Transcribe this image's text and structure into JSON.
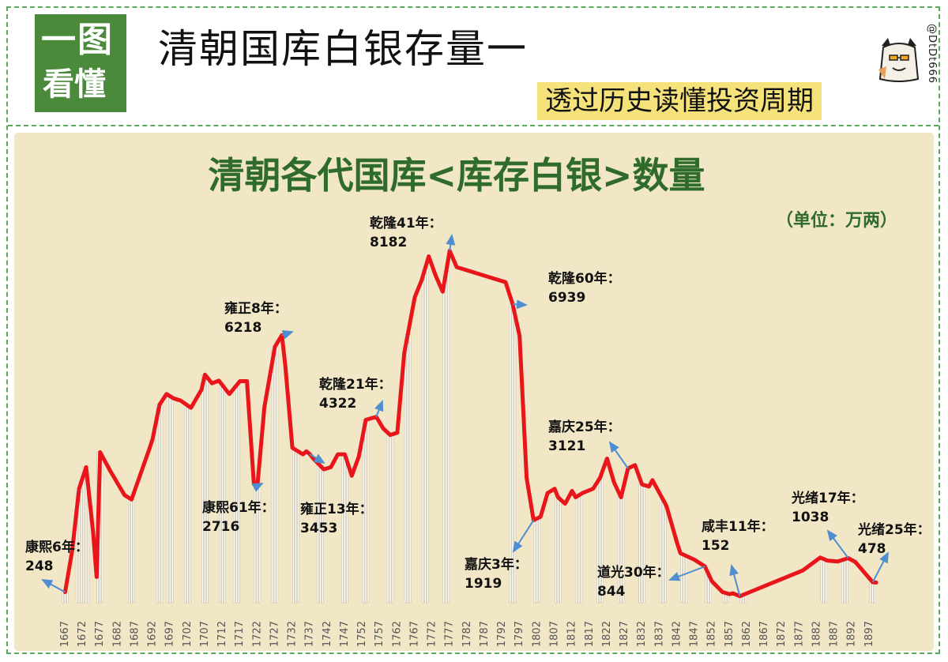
{
  "header": {
    "logo_line1": "一图",
    "logo_line2": "看懂",
    "title": "清朝国库白银存量一",
    "subtitle": "透过历史读懂投资周期",
    "handle": "@DtDt666"
  },
  "colors": {
    "accent_green": "#4a8a3a",
    "dashed_border": "#5aa85a",
    "line": "#e8161b",
    "arrow": "#4f8ed0",
    "panel_bg": "#f1e6c6",
    "subtitle_bg": "#f6e27a"
  },
  "chart_data": {
    "type": "line",
    "title": "清朝各代国库<库存白银>数量",
    "unit": "（单位：万两）",
    "xlabel": "",
    "ylabel": "",
    "xlim": [
      1666,
      1901
    ],
    "ylim": [
      0,
      9000
    ],
    "x_ticks": [
      1667,
      1672,
      1677,
      1682,
      1687,
      1692,
      1697,
      1702,
      1707,
      1712,
      1717,
      1722,
      1727,
      1732,
      1737,
      1742,
      1747,
      1752,
      1757,
      1762,
      1767,
      1772,
      1777,
      1782,
      1787,
      1792,
      1797,
      1802,
      1807,
      1812,
      1817,
      1822,
      1827,
      1832,
      1837,
      1842,
      1847,
      1852,
      1857,
      1862,
      1867,
      1872,
      1877,
      1882,
      1887,
      1892,
      1897
    ],
    "points": [
      [
        1667,
        248
      ],
      [
        1669,
        1200
      ],
      [
        1671,
        2650
      ],
      [
        1673,
        3150
      ],
      [
        1675,
        1650
      ],
      [
        1676,
        600
      ],
      [
        1677,
        3500
      ],
      [
        1680,
        3050
      ],
      [
        1684,
        2500
      ],
      [
        1686,
        2400
      ],
      [
        1691,
        3550
      ],
      [
        1692,
        3800
      ],
      [
        1694,
        4600
      ],
      [
        1696,
        4850
      ],
      [
        1698,
        4750
      ],
      [
        1700,
        4700
      ],
      [
        1703,
        4530
      ],
      [
        1706,
        4950
      ],
      [
        1707,
        5300
      ],
      [
        1709,
        5100
      ],
      [
        1711,
        5160
      ],
      [
        1713,
        4950
      ],
      [
        1714,
        4850
      ],
      [
        1717,
        5150
      ],
      [
        1719,
        5150
      ],
      [
        1721,
        2750
      ],
      [
        1722,
        2716
      ],
      [
        1724,
        4550
      ],
      [
        1727,
        5950
      ],
      [
        1729,
        6218
      ],
      [
        1730,
        5500
      ],
      [
        1732,
        3600
      ],
      [
        1735,
        3450
      ],
      [
        1736,
        3520
      ],
      [
        1737,
        3453
      ],
      [
        1738,
        3350
      ],
      [
        1741,
        3100
      ],
      [
        1743,
        3150
      ],
      [
        1745,
        3450
      ],
      [
        1747,
        3450
      ],
      [
        1749,
        2950
      ],
      [
        1751,
        3400
      ],
      [
        1753,
        4250
      ],
      [
        1756,
        4322
      ],
      [
        1758,
        4050
      ],
      [
        1760,
        3900
      ],
      [
        1762,
        3950
      ],
      [
        1764,
        5800
      ],
      [
        1767,
        7100
      ],
      [
        1769,
        7500
      ],
      [
        1771,
        8050
      ],
      [
        1773,
        7600
      ],
      [
        1775,
        7230
      ],
      [
        1776,
        7700
      ],
      [
        1777,
        8182
      ],
      [
        1779,
        7800
      ],
      [
        1793,
        7450
      ],
      [
        1795,
        6939
      ],
      [
        1797,
        6200
      ],
      [
        1799,
        2900
      ],
      [
        1801,
        1919
      ],
      [
        1803,
        2000
      ],
      [
        1805,
        2550
      ],
      [
        1807,
        2650
      ],
      [
        1808,
        2450
      ],
      [
        1810,
        2300
      ],
      [
        1812,
        2600
      ],
      [
        1813,
        2450
      ],
      [
        1815,
        2550
      ],
      [
        1818,
        2650
      ],
      [
        1820,
        2900
      ],
      [
        1822,
        3350
      ],
      [
        1824,
        2800
      ],
      [
        1826,
        2450
      ],
      [
        1828,
        3121
      ],
      [
        1830,
        3200
      ],
      [
        1832,
        2750
      ],
      [
        1834,
        2700
      ],
      [
        1835,
        2850
      ],
      [
        1839,
        2250
      ],
      [
        1842,
        1400
      ],
      [
        1843,
        1150
      ],
      [
        1847,
        1000
      ],
      [
        1850,
        844
      ],
      [
        1852,
        500
      ],
      [
        1855,
        250
      ],
      [
        1857,
        200
      ],
      [
        1858,
        220
      ],
      [
        1860,
        152
      ],
      [
        1862,
        220
      ],
      [
        1878,
        750
      ],
      [
        1883,
        1050
      ],
      [
        1885,
        980
      ],
      [
        1888,
        960
      ],
      [
        1891,
        1038
      ],
      [
        1893,
        950
      ],
      [
        1898,
        478
      ],
      [
        1899,
        470
      ]
    ],
    "bar_years": [
      1667,
      1671,
      1673,
      1677,
      1686,
      1694,
      1697,
      1702,
      1707,
      1712,
      1716,
      1722,
      1727,
      1733,
      1740,
      1747,
      1753,
      1760,
      1765,
      1770,
      1776,
      1795,
      1802,
      1808,
      1814,
      1820,
      1826,
      1832,
      1838,
      1844,
      1851,
      1856,
      1861,
      1884,
      1890,
      1898
    ],
    "annotations": [
      {
        "label": "康熙6年：",
        "value": "248",
        "year": 1667,
        "amount": 248
      },
      {
        "label": "康熙61年：",
        "value": "2716",
        "year": 1722,
        "amount": 2716
      },
      {
        "label": "雍正8年：",
        "value": "6218",
        "year": 1729,
        "amount": 6218
      },
      {
        "label": "雍正13年：",
        "value": "3453",
        "year": 1737,
        "amount": 3453
      },
      {
        "label": "乾隆21年：",
        "value": "4322",
        "year": 1756,
        "amount": 4322
      },
      {
        "label": "乾隆41年：",
        "value": "8182",
        "year": 1777,
        "amount": 8182
      },
      {
        "label": "乾隆60年：",
        "value": "6939",
        "year": 1795,
        "amount": 6939
      },
      {
        "label": "嘉庆3年：",
        "value": "1919",
        "year": 1801,
        "amount": 1919
      },
      {
        "label": "嘉庆25年：",
        "value": "3121",
        "year": 1828,
        "amount": 3121
      },
      {
        "label": "道光30年：",
        "value": "844",
        "year": 1850,
        "amount": 844
      },
      {
        "label": "咸丰11年：",
        "value": "152",
        "year": 1860,
        "amount": 152
      },
      {
        "label": "光绪17年：",
        "value": "1038",
        "year": 1891,
        "amount": 1038
      },
      {
        "label": "光绪25年：",
        "value": "478",
        "year": 1898,
        "amount": 478
      }
    ],
    "grid": false,
    "legend": "none"
  }
}
